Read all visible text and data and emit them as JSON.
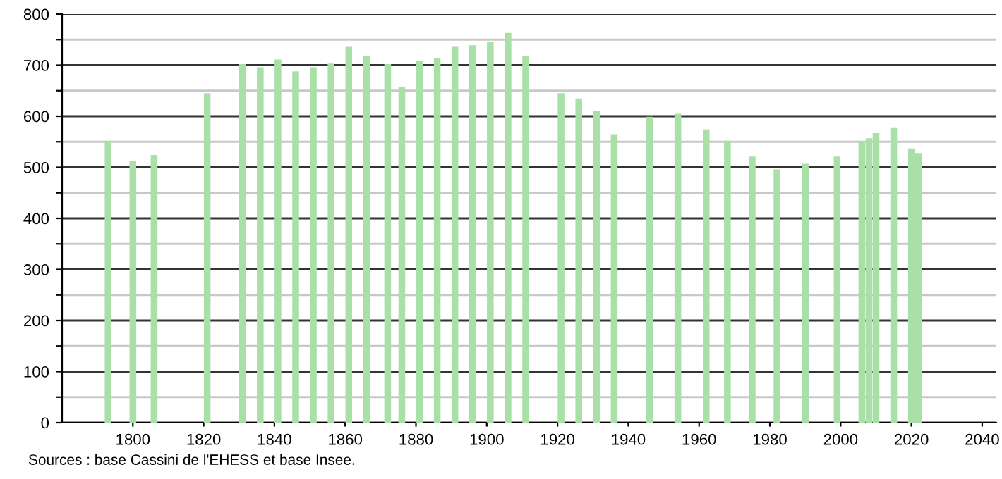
{
  "chart_data": {
    "type": "bar",
    "x": [
      1793,
      1800,
      1806,
      1821,
      1831,
      1836,
      1841,
      1846,
      1851,
      1856,
      1861,
      1866,
      1872,
      1876,
      1881,
      1886,
      1891,
      1896,
      1901,
      1906,
      1911,
      1921,
      1926,
      1931,
      1936,
      1946,
      1954,
      1962,
      1968,
      1975,
      1982,
      1990,
      1999,
      2006,
      2008,
      2010,
      2015,
      2020,
      2022
    ],
    "values": [
      551,
      512,
      524,
      645,
      702,
      696,
      711,
      688,
      696,
      703,
      736,
      718,
      702,
      658,
      708,
      713,
      736,
      739,
      745,
      763,
      718,
      645,
      635,
      610,
      565,
      599,
      605,
      574,
      552,
      521,
      496,
      507,
      521,
      551,
      557,
      567,
      577,
      537,
      528
    ],
    "color": "#a8e0a8",
    "xlim": [
      1780,
      2044
    ],
    "xticks": [
      1800,
      1820,
      1840,
      1860,
      1880,
      1900,
      1920,
      1940,
      1960,
      1980,
      2000,
      2020,
      2040
    ],
    "ylim": [
      0,
      800
    ],
    "yticks": [
      0,
      {
        "value": 50,
        "label": null
      },
      100,
      {
        "value": 150,
        "label": null
      },
      200,
      {
        "value": 250,
        "label": null
      },
      300,
      {
        "value": 350,
        "label": null
      },
      400,
      {
        "value": 450,
        "label": null
      },
      500,
      {
        "value": 550,
        "label": null
      },
      600,
      {
        "value": 650,
        "label": null
      },
      700,
      {
        "value": 750,
        "label": null
      },
      800
    ],
    "grid": "y",
    "annotations": [
      "Sources : base Cassini de l'EHESS et base Insee."
    ]
  }
}
